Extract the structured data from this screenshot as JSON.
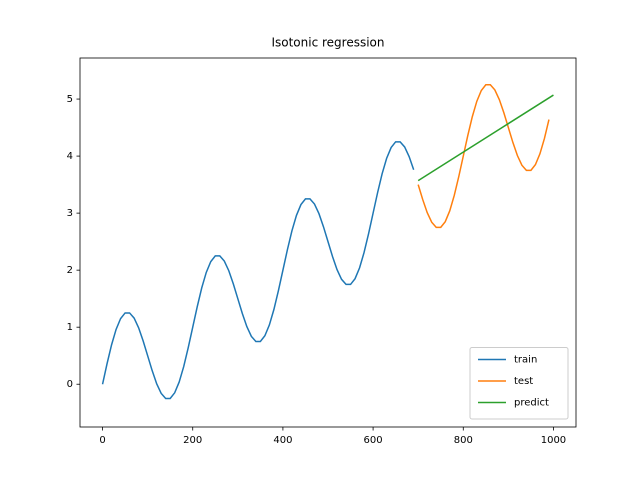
{
  "chart_data": {
    "type": "line",
    "title": "Isotonic regression",
    "xlim": [
      -50,
      1050
    ],
    "ylim": [
      -0.75,
      5.72
    ],
    "xticks": [
      0,
      200,
      400,
      600,
      800,
      1000
    ],
    "yticks": [
      0,
      1,
      2,
      3,
      4,
      5
    ],
    "legend": "lower right",
    "series": [
      {
        "name": "train",
        "color": "#1f77b4",
        "x": [
          0,
          10,
          20,
          30,
          40,
          50,
          60,
          70,
          80,
          90,
          100,
          110,
          120,
          130,
          140,
          150,
          160,
          170,
          180,
          190,
          200,
          210,
          220,
          230,
          240,
          250,
          260,
          270,
          280,
          290,
          300,
          310,
          320,
          330,
          340,
          350,
          360,
          370,
          380,
          390,
          400,
          410,
          420,
          430,
          440,
          450,
          460,
          470,
          480,
          490,
          500,
          510,
          520,
          530,
          540,
          550,
          560,
          570,
          580,
          590,
          600,
          610,
          620,
          630,
          640,
          650,
          660,
          670,
          680,
          690
        ],
        "values": [
          0,
          0.36,
          0.69,
          0.96,
          1.15,
          1.25,
          1.25,
          1.16,
          0.99,
          0.76,
          0.5,
          0.24,
          0.01,
          -0.16,
          -0.25,
          -0.25,
          -0.15,
          0.04,
          0.31,
          0.64,
          1,
          1.36,
          1.69,
          1.96,
          2.15,
          2.25,
          2.25,
          2.16,
          1.99,
          1.76,
          1.5,
          1.24,
          1.01,
          0.84,
          0.75,
          0.75,
          0.85,
          1.04,
          1.31,
          1.64,
          2,
          2.36,
          2.69,
          2.96,
          3.15,
          3.25,
          3.25,
          3.16,
          2.99,
          2.76,
          2.5,
          2.24,
          2.01,
          1.84,
          1.75,
          1.75,
          1.85,
          2.04,
          2.31,
          2.64,
          3,
          3.36,
          3.69,
          3.96,
          4.15,
          4.25,
          4.25,
          4.16,
          3.99,
          3.76
        ]
      },
      {
        "name": "test",
        "color": "#ff7f0e",
        "x": [
          700,
          710,
          720,
          730,
          740,
          750,
          760,
          770,
          780,
          790,
          800,
          810,
          820,
          830,
          840,
          850,
          860,
          870,
          880,
          890,
          900,
          910,
          920,
          930,
          940,
          950,
          960,
          970,
          980,
          990
        ],
        "values": [
          3.5,
          3.24,
          3.01,
          2.84,
          2.75,
          2.75,
          2.85,
          3.04,
          3.31,
          3.64,
          4,
          4.36,
          4.69,
          4.96,
          5.15,
          5.25,
          5.25,
          5.16,
          4.99,
          4.76,
          4.5,
          4.24,
          4.01,
          3.84,
          3.75,
          3.75,
          3.85,
          4.04,
          4.31,
          4.64
        ]
      },
      {
        "name": "predict",
        "color": "#2ca02c",
        "x": [
          700,
          1000
        ],
        "values": [
          3.57,
          5.07
        ]
      }
    ]
  }
}
